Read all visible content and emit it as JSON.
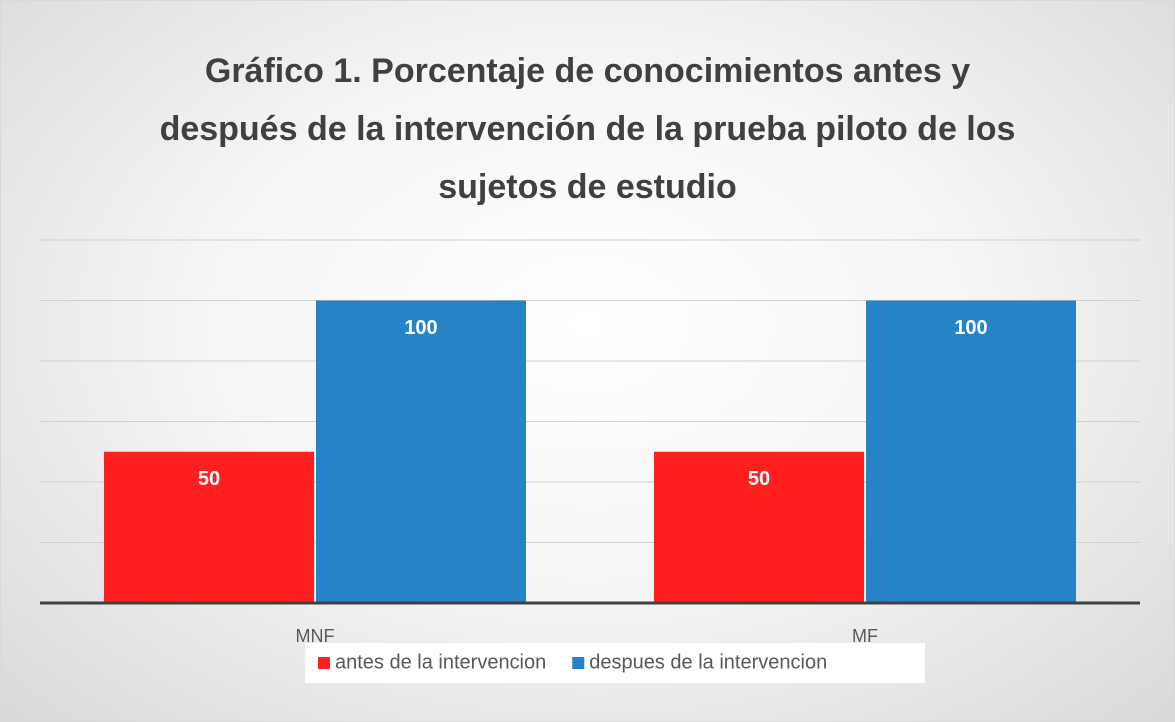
{
  "chart_data": {
    "type": "bar",
    "title": "Gráfico 1. Porcentaje de conocimientos antes y después de la intervención de la prueba piloto de los sujetos de estudio",
    "categories": [
      "MNF",
      "MF"
    ],
    "series": [
      {
        "name": "antes de la intervencion",
        "color": "#ff1f1f",
        "values": [
          50,
          50
        ]
      },
      {
        "name": "despues de la intervencion",
        "color": "#2683c6",
        "values": [
          100,
          100
        ]
      }
    ],
    "ylim": [
      0,
      120
    ],
    "yticks": [
      0,
      20,
      40,
      60,
      80,
      100,
      120
    ],
    "grid": true,
    "legend": "bottom"
  }
}
